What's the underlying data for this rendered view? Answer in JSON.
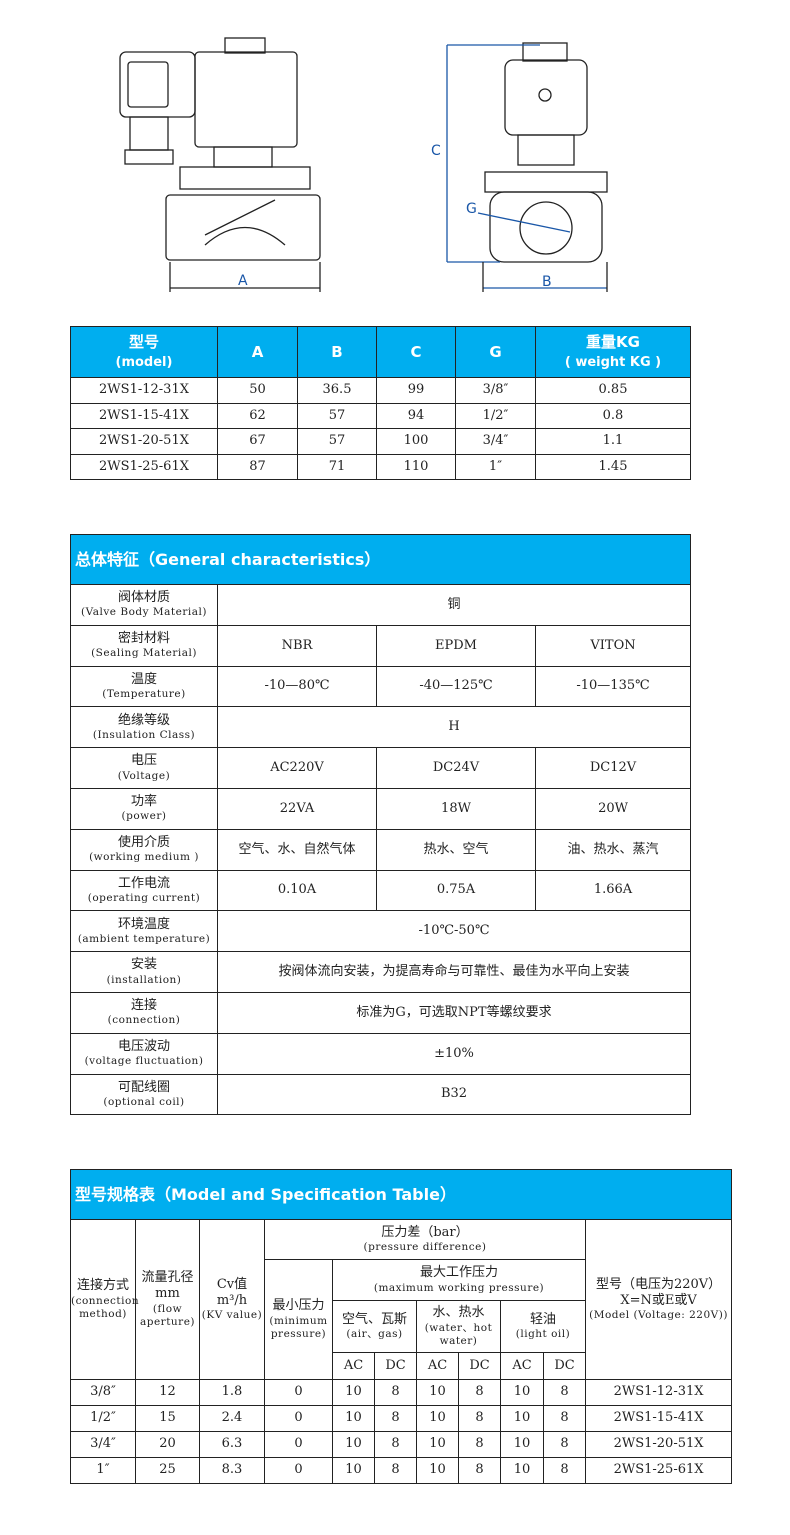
{
  "drawing": {
    "dim_a": "A",
    "dim_b": "B",
    "dim_c": "C",
    "dim_g": "G"
  },
  "dimensions_table": {
    "headers": [
      {
        "cn": "型号",
        "en": "(model)"
      },
      {
        "cn": "A"
      },
      {
        "cn": "B"
      },
      {
        "cn": "C"
      },
      {
        "cn": "G"
      },
      {
        "cn": "重量KG",
        "en": "( weight KG )"
      }
    ],
    "rows": [
      [
        "2WS1-12-31X",
        "50",
        "36.5",
        "99",
        "3/8″",
        "0.85"
      ],
      [
        "2WS1-15-41X",
        "62",
        "57",
        "94",
        "1/2″",
        "0.8"
      ],
      [
        "2WS1-20-51X",
        "67",
        "57",
        "100",
        "3/4″",
        "1.1"
      ],
      [
        "2WS1-25-61X",
        "87",
        "71",
        "110",
        "1″",
        "1.45"
      ]
    ]
  },
  "general": {
    "title": "总体特征（General characteristics）",
    "rows": [
      {
        "cn": "阀体材质",
        "en": "(Valve Body Material)",
        "values": [
          "铜"
        ]
      },
      {
        "cn": "密封材料",
        "en": "(Sealing Material)",
        "values": [
          "NBR",
          "EPDM",
          "VITON"
        ]
      },
      {
        "cn": "温度",
        "en": "(Temperature)",
        "values": [
          "-10—80℃",
          "-40—125℃",
          "-10—135℃"
        ]
      },
      {
        "cn": "绝缘等级",
        "en": "(Insulation Class)",
        "values": [
          "H"
        ]
      },
      {
        "cn": "电压",
        "en": "(Voltage)",
        "values": [
          "AC220V",
          "DC24V",
          "DC12V"
        ]
      },
      {
        "cn": "功率",
        "en": "(power)",
        "values": [
          "22VA",
          "18W",
          "20W"
        ]
      },
      {
        "cn": "使用介质",
        "en": "(working medium )",
        "values": [
          "空气、水、自然气体",
          "热水、空气",
          "油、热水、蒸汽"
        ]
      },
      {
        "cn": "工作电流",
        "en": "(operating current)",
        "values": [
          "0.10A",
          "0.75A",
          "1.66A"
        ]
      },
      {
        "cn": "环境温度",
        "en": "(ambient temperature)",
        "values": [
          "-10℃-50℃"
        ]
      },
      {
        "cn": "安装",
        "en": "(installation)",
        "values": [
          "按阀体流向安装，为提高寿命与可靠性、最佳为水平向上安装"
        ]
      },
      {
        "cn": "连接",
        "en": "(connection)",
        "values": [
          "标准为G，可选取NPT等螺纹要求"
        ]
      },
      {
        "cn": "电压波动",
        "en": "(voltage fluctuation)",
        "values": [
          "±10%"
        ]
      },
      {
        "cn": "可配线圈",
        "en": "(optional coil)",
        "values": [
          "B32"
        ]
      }
    ]
  },
  "spec": {
    "title": "型号规格表（Model and Specification Table）",
    "h_connection": "连接方式",
    "h_connection_en": "(connection method)",
    "h_flow": "流量孔径mm",
    "h_flow_en": "(flow aperture)",
    "h_cv": "Cv值 m³/h",
    "h_cv_en": "(KV value)",
    "h_pressure": "压力差（bar）",
    "h_pressure_en": "(pressure difference)",
    "h_min": "最小压力",
    "h_min_en": "(minimum pressure)",
    "h_max": "最大工作压力",
    "h_max_en": "(maximum working pressure)",
    "h_air": "空气、瓦斯",
    "h_air_en": "(air、gas)",
    "h_water": "水、热水",
    "h_water_en": "(water、hot water)",
    "h_oil": "轻油",
    "h_oil_en": "(light oil)",
    "h_model": "型号（电压为220V）X=N或E或V",
    "h_model_en": "(Model (Voltage: 220V))",
    "ac": "AC",
    "dc": "DC",
    "rows": [
      [
        "3/8″",
        "12",
        "1.8",
        "0",
        "10",
        "8",
        "10",
        "8",
        "10",
        "8",
        "2WS1-12-31X"
      ],
      [
        "1/2″",
        "15",
        "2.4",
        "0",
        "10",
        "8",
        "10",
        "8",
        "10",
        "8",
        "2WS1-15-41X"
      ],
      [
        "3/4″",
        "20",
        "6.3",
        "0",
        "10",
        "8",
        "10",
        "8",
        "10",
        "8",
        "2WS1-20-51X"
      ],
      [
        "1″",
        "25",
        "8.3",
        "0",
        "10",
        "8",
        "10",
        "8",
        "10",
        "8",
        "2WS1-25-61X"
      ]
    ]
  }
}
